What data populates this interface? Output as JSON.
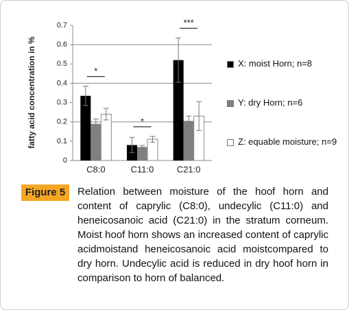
{
  "chart_data": {
    "type": "bar",
    "y_label": "fatty acid concentration in %",
    "categories": [
      "C8:0",
      "C11:0",
      "C21:0"
    ],
    "series": [
      {
        "name": "X: moist Horn; n=8",
        "color": "#000000",
        "values": [
          0.335,
          0.08,
          0.52
        ],
        "errors": [
          0.05,
          0.04,
          0.115
        ]
      },
      {
        "name": "Y: dry Horn; n=6",
        "color": "#808080",
        "values": [
          0.19,
          0.07,
          0.205
        ],
        "errors": [
          0.025,
          0.008,
          0.025
        ]
      },
      {
        "name": "Z: equable moisture; n=9",
        "color": "#ffffff",
        "values": [
          0.24,
          0.11,
          0.23
        ],
        "errors": [
          0.03,
          0.015,
          0.075
        ]
      }
    ],
    "annotations": [
      {
        "text": "*",
        "category": 0
      },
      {
        "text": "*",
        "category": 1
      },
      {
        "text": "***",
        "category": 2
      }
    ],
    "ylim": [
      0,
      0.7
    ],
    "yticks": [
      0,
      0.1,
      0.2,
      0.3,
      0.4,
      0.5,
      0.6,
      0.7
    ],
    "grid_lines": [
      0.2,
      0.4,
      0.6
    ]
  },
  "caption": {
    "label": "Figure 5",
    "text": "Relation between moisture of the hoof horn and content of caprylic (C8:0), undecylic (C11:0) and heneicosanoic acid (C21:0) in the stratum corneum. Moist hoof horn shows an increased content of caprylic acidmoistand heneicosanoic acid moistcompared to dry horn. Undecylic acid is reduced in dry hoof horn in comparison to horn of balanced."
  }
}
